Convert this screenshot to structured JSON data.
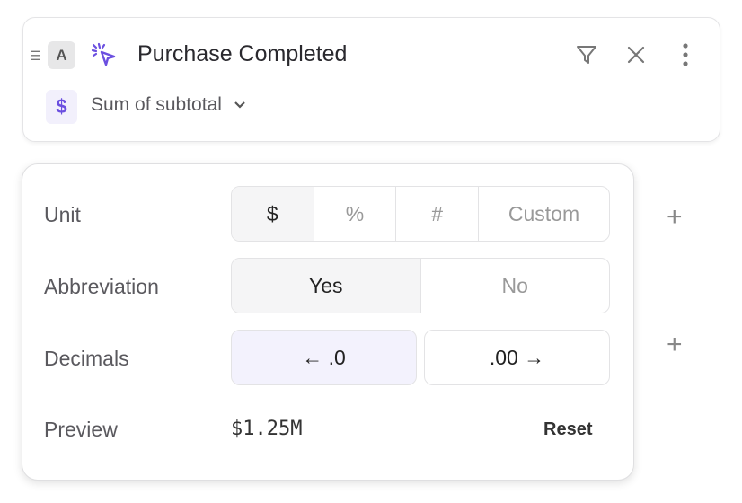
{
  "event": {
    "drag_icon": "drag-handle-icon",
    "letter": "A",
    "icon": "cursor-click-icon",
    "title": "Purchase Completed",
    "measure_icon": "dollar-icon",
    "measure_symbol": "$",
    "measure": "Sum of subtotal"
  },
  "actions": {
    "filter": "filter-icon",
    "close": "close-icon",
    "more": "more-vertical-icon"
  },
  "format": {
    "unit_label": "Unit",
    "units": [
      "$",
      "%",
      "#",
      "Custom"
    ],
    "unit_selected": "$",
    "abbreviation_label": "Abbreviation",
    "abbreviation_options": [
      "Yes",
      "No"
    ],
    "abbreviation_selected": "Yes",
    "decimals_label": "Decimals",
    "decrease": "← .0",
    "increase": ".00 →",
    "preview_label": "Preview",
    "preview_value": "$1.25M",
    "reset": "Reset"
  },
  "colors": {
    "accent": "#6b4fe0",
    "accent_bg": "#f2f0fc"
  }
}
